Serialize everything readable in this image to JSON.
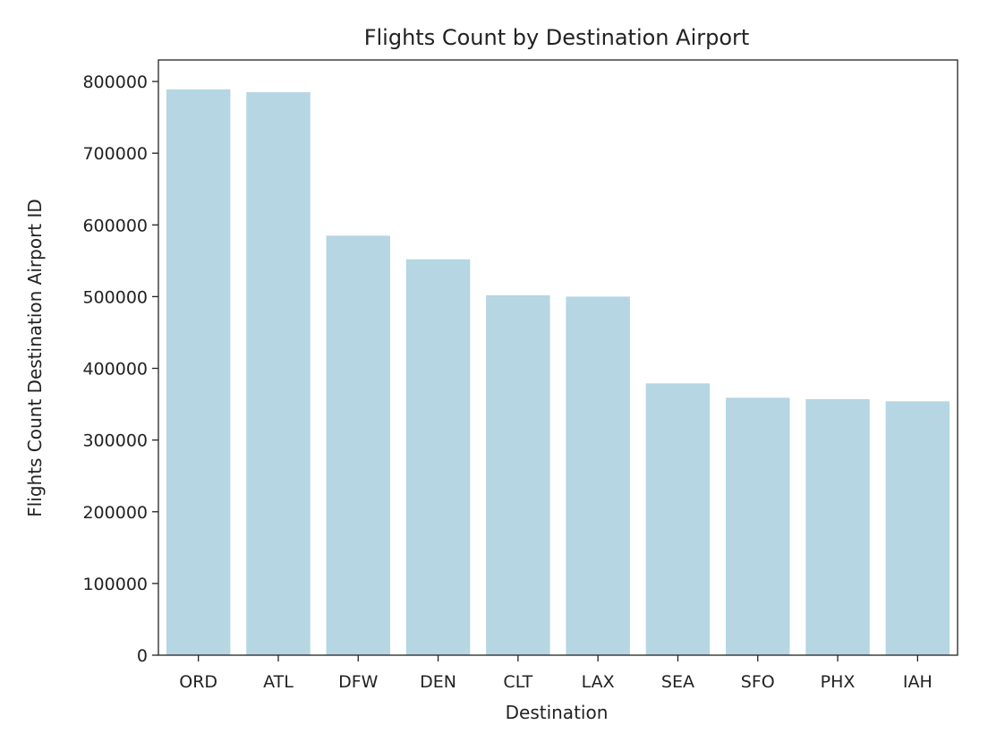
{
  "chart_data": {
    "type": "bar",
    "title": "Flights Count by Destination Airport",
    "xlabel": "Destination",
    "ylabel": "Flights Count Destination Airport ID",
    "categories": [
      "ORD",
      "ATL",
      "DFW",
      "DEN",
      "CLT",
      "LAX",
      "SEA",
      "SFO",
      "PHX",
      "IAH"
    ],
    "values": [
      789000,
      785000,
      585000,
      552000,
      502000,
      500000,
      379000,
      359000,
      357000,
      354000
    ],
    "ylim": [
      0,
      830000
    ],
    "yticks": [
      0,
      100000,
      200000,
      300000,
      400000,
      500000,
      600000,
      700000,
      800000
    ],
    "ytick_labels": [
      "0",
      "100000",
      "200000",
      "300000",
      "400000",
      "500000",
      "600000",
      "700000",
      "800000"
    ],
    "bar_color": "#b5d6e2",
    "grid": false,
    "legend": "none"
  }
}
